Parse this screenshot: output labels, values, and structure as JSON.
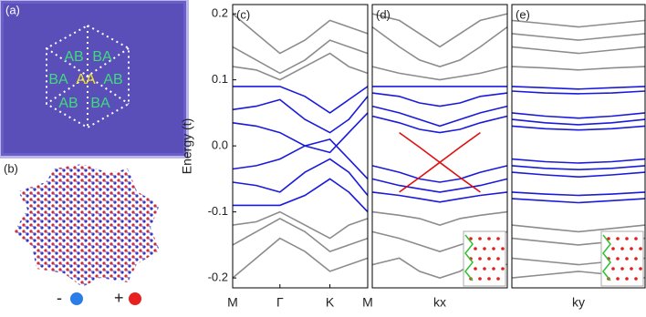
{
  "figure": {
    "panel_a": {
      "label": "(a)",
      "regions": [
        "AB",
        "BA",
        "BA",
        "AA",
        "AB",
        "AB",
        "BA"
      ]
    },
    "panel_b": {
      "label": "(b)",
      "minus": "-",
      "plus": "+"
    }
  },
  "chart_data": [
    {
      "type": "line",
      "title": "(c)",
      "ylabel": "Energy (t)",
      "x": [
        0,
        0.175,
        0.35,
        0.535,
        0.72,
        0.86,
        1
      ],
      "xlim": [
        0,
        1
      ],
      "xticks": [
        {
          "value": 0,
          "label": "M"
        },
        {
          "value": 0.35,
          "label": "Γ"
        },
        {
          "value": 0.72,
          "label": "K"
        },
        {
          "value": 1,
          "label": "M"
        }
      ],
      "ylim": [
        -0.215,
        0.214
      ],
      "yticks": [
        -0.2,
        -0.1,
        {
          "value": 0,
          "label": "0.0"
        },
        0.1,
        0.2
      ],
      "series": [
        {
          "color": "#1a1adc",
          "values": [
            0.09,
            0.09,
            0.09,
            0.075,
            0.05,
            0.07,
            0.09
          ]
        },
        {
          "color": "#1a1adc",
          "values": [
            0.055,
            0.06,
            0.07,
            0.04,
            0.02,
            0.04,
            0.075
          ]
        },
        {
          "color": "#1a1adc",
          "values": [
            0.035,
            0.03,
            0.02,
            0,
            -0.01,
            0.02,
            0.05
          ]
        },
        {
          "color": "#1a1adc",
          "values": [
            -0.035,
            -0.03,
            -0.02,
            0,
            0.01,
            -0.02,
            -0.05
          ]
        },
        {
          "color": "#1a1adc",
          "values": [
            -0.055,
            -0.06,
            -0.07,
            -0.04,
            -0.02,
            -0.04,
            -0.075
          ]
        },
        {
          "color": "#1a1adc",
          "values": [
            -0.09,
            -0.09,
            -0.09,
            -0.075,
            -0.05,
            -0.07,
            -0.1
          ]
        },
        {
          "color": "#8c8c8c",
          "values": [
            0.2,
            0.17,
            0.14,
            0.16,
            0.19,
            0.18,
            0.17
          ]
        },
        {
          "color": "#8c8c8c",
          "values": [
            0.15,
            0.13,
            0.11,
            0.13,
            0.16,
            0.15,
            0.14
          ]
        },
        {
          "color": "#8c8c8c",
          "values": [
            0.12,
            0.115,
            0.1,
            0.12,
            0.14,
            0.12,
            0.11
          ]
        },
        {
          "color": "#8c8c8c",
          "values": [
            -0.12,
            -0.115,
            -0.1,
            -0.12,
            -0.14,
            -0.12,
            -0.11
          ]
        },
        {
          "color": "#8c8c8c",
          "values": [
            -0.15,
            -0.13,
            -0.11,
            -0.13,
            -0.16,
            -0.15,
            -0.14
          ]
        },
        {
          "color": "#8c8c8c",
          "values": [
            -0.2,
            -0.17,
            -0.14,
            -0.16,
            -0.19,
            -0.18,
            -0.17
          ]
        }
      ]
    },
    {
      "type": "line",
      "title": "(d)",
      "xlabel": "kx",
      "x": [
        0,
        0.2,
        0.35,
        0.5,
        0.65,
        0.8,
        1
      ],
      "xlim": [
        0,
        1
      ],
      "ylim": [
        -0.215,
        0.214
      ],
      "series": [
        {
          "color": "#1a1adc",
          "values": [
            0.09,
            0.09,
            0.09,
            0.09,
            0.09,
            0.09,
            0.09
          ]
        },
        {
          "color": "#1a1adc",
          "values": [
            0.08,
            0.075,
            0.065,
            0.06,
            0.065,
            0.075,
            0.08
          ]
        },
        {
          "color": "#1a1adc",
          "values": [
            0.06,
            0.05,
            0.04,
            0.03,
            0.04,
            0.05,
            0.06
          ]
        },
        {
          "color": "#1a1adc",
          "values": [
            0.045,
            0.035,
            0.025,
            0.02,
            0.025,
            0.035,
            0.045
          ]
        },
        {
          "color": "#1a1adc",
          "values": [
            -0.03,
            -0.04,
            -0.05,
            -0.055,
            -0.05,
            -0.04,
            -0.03
          ]
        },
        {
          "color": "#1a1adc",
          "values": [
            -0.05,
            -0.06,
            -0.065,
            -0.07,
            -0.065,
            -0.06,
            -0.05
          ]
        },
        {
          "color": "#1a1adc",
          "values": [
            -0.07,
            -0.075,
            -0.08,
            -0.085,
            -0.08,
            -0.075,
            -0.07
          ]
        },
        {
          "color": "#e01010",
          "values": [
            null,
            0.02,
            -0.002,
            -0.025,
            -0.002,
            0.02,
            null
          ]
        },
        {
          "color": "#e01010",
          "values": [
            null,
            -0.07,
            -0.048,
            -0.025,
            -0.048,
            -0.07,
            null
          ]
        },
        {
          "color": "#8c8c8c",
          "values": [
            0.18,
            0.15,
            0.13,
            0.12,
            0.13,
            0.15,
            0.18
          ]
        },
        {
          "color": "#8c8c8c",
          "values": [
            0.2,
            0.19,
            0.17,
            0.15,
            0.17,
            0.19,
            0.2
          ]
        },
        {
          "color": "#8c8c8c",
          "values": [
            0.12,
            0.11,
            0.105,
            0.1,
            0.105,
            0.11,
            0.12
          ]
        },
        {
          "color": "#8c8c8c",
          "values": [
            -0.1,
            -0.105,
            -0.11,
            -0.12,
            -0.11,
            -0.105,
            -0.1
          ]
        },
        {
          "color": "#8c8c8c",
          "values": [
            -0.13,
            -0.14,
            -0.15,
            -0.16,
            -0.15,
            -0.14,
            -0.13
          ]
        },
        {
          "color": "#8c8c8c",
          "values": [
            -0.18,
            -0.17,
            -0.19,
            -0.2,
            -0.19,
            -0.17,
            -0.18
          ]
        }
      ]
    },
    {
      "type": "line",
      "title": "(e)",
      "xlabel": "ky",
      "x": [
        0,
        0.25,
        0.5,
        0.75,
        1
      ],
      "xlim": [
        0,
        1
      ],
      "ylim": [
        -0.215,
        0.214
      ],
      "series": [
        {
          "color": "#1a1adc",
          "values": [
            0.09,
            0.088,
            0.086,
            0.088,
            0.09
          ]
        },
        {
          "color": "#1a1adc",
          "values": [
            0.083,
            0.08,
            0.079,
            0.08,
            0.083
          ]
        },
        {
          "color": "#1a1adc",
          "values": [
            0.05,
            0.045,
            0.042,
            0.045,
            0.05
          ]
        },
        {
          "color": "#1a1adc",
          "values": [
            0.04,
            0.035,
            0.032,
            0.035,
            0.04
          ]
        },
        {
          "color": "#1a1adc",
          "values": [
            0.03,
            0.026,
            0.024,
            0.026,
            0.03
          ]
        },
        {
          "color": "#1a1adc",
          "values": [
            -0.02,
            -0.024,
            -0.026,
            -0.024,
            -0.02
          ]
        },
        {
          "color": "#1a1adc",
          "values": [
            -0.03,
            -0.034,
            -0.036,
            -0.034,
            -0.03
          ]
        },
        {
          "color": "#1a1adc",
          "values": [
            -0.04,
            -0.044,
            -0.047,
            -0.044,
            -0.04
          ]
        },
        {
          "color": "#1a1adc",
          "values": [
            -0.07,
            -0.073,
            -0.075,
            -0.073,
            -0.07
          ]
        },
        {
          "color": "#1a1adc",
          "values": [
            -0.08,
            -0.083,
            -0.086,
            -0.083,
            -0.08
          ]
        },
        {
          "color": "#8c8c8c",
          "values": [
            0.19,
            0.185,
            0.18,
            0.185,
            0.19
          ]
        },
        {
          "color": "#8c8c8c",
          "values": [
            0.17,
            0.165,
            0.16,
            0.165,
            0.17
          ]
        },
        {
          "color": "#8c8c8c",
          "values": [
            0.15,
            0.145,
            0.14,
            0.145,
            0.15
          ]
        },
        {
          "color": "#8c8c8c",
          "values": [
            0.12,
            0.118,
            0.115,
            0.118,
            0.12
          ]
        },
        {
          "color": "#8c8c8c",
          "values": [
            -0.12,
            -0.125,
            -0.13,
            -0.125,
            -0.12
          ]
        },
        {
          "color": "#8c8c8c",
          "values": [
            -0.14,
            -0.145,
            -0.15,
            -0.145,
            -0.14
          ]
        },
        {
          "color": "#8c8c8c",
          "values": [
            -0.17,
            -0.175,
            -0.18,
            -0.175,
            -0.17
          ]
        },
        {
          "color": "#8c8c8c",
          "values": [
            -0.2,
            -0.195,
            -0.19,
            -0.195,
            -0.2
          ]
        }
      ]
    }
  ]
}
